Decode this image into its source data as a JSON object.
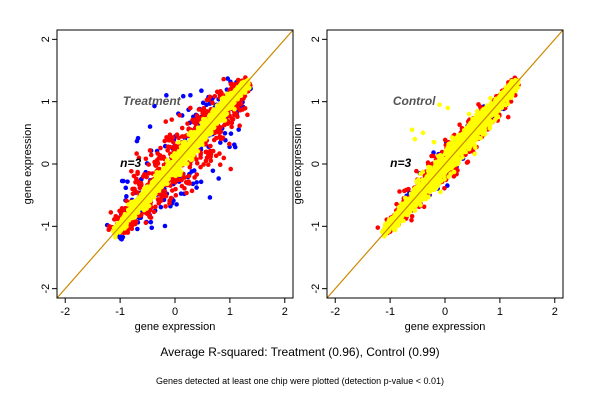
{
  "chart_data": [
    {
      "type": "scatter",
      "panel_label": "Treatment",
      "annotation": "n=3",
      "xlabel": "gene expression",
      "ylabel": "gene expression",
      "xlim": [
        -2.15,
        2.15
      ],
      "ylim": [
        -2.15,
        2.15
      ],
      "x_ticks": [
        -2,
        -1,
        0,
        1,
        2
      ],
      "y_ticks": [
        -2,
        -1,
        0,
        1,
        2
      ],
      "reference_line": {
        "slope": 1,
        "intercept": 0,
        "color": "#cc8800"
      },
      "point_colors": {
        "blue": "#0000ff",
        "red": "#ff0000",
        "yellow": "#ffff00"
      },
      "x_range_of_points": [
        -1.1,
        1.3
      ],
      "spread": {
        "yellow": 0.08,
        "red": 0.33,
        "blue": 0.45
      },
      "grid": false
    },
    {
      "type": "scatter",
      "panel_label": "Control",
      "annotation": "n=3",
      "xlabel": "gene expression",
      "ylabel": "gene expression",
      "xlim": [
        -2.15,
        2.15
      ],
      "ylim": [
        -2.15,
        2.15
      ],
      "x_ticks": [
        -2,
        -1,
        0,
        1,
        2
      ],
      "y_ticks": [
        -2,
        -1,
        0,
        1,
        2
      ],
      "reference_line": {
        "slope": 1,
        "intercept": 0,
        "color": "#cc8800"
      },
      "point_colors": {
        "blue": "#0000ff",
        "red": "#ff0000",
        "yellow": "#ffff00"
      },
      "x_range_of_points": [
        -1.1,
        1.3
      ],
      "spread": {
        "yellow": 0.1,
        "red": 0.16,
        "blue": 0.12
      },
      "grid": false
    }
  ],
  "caption": "Average R-squared: Treatment (0.96), Control (0.99)",
  "subcaption": "Genes detected at least one chip were plotted (detection p-value < 0.01)"
}
